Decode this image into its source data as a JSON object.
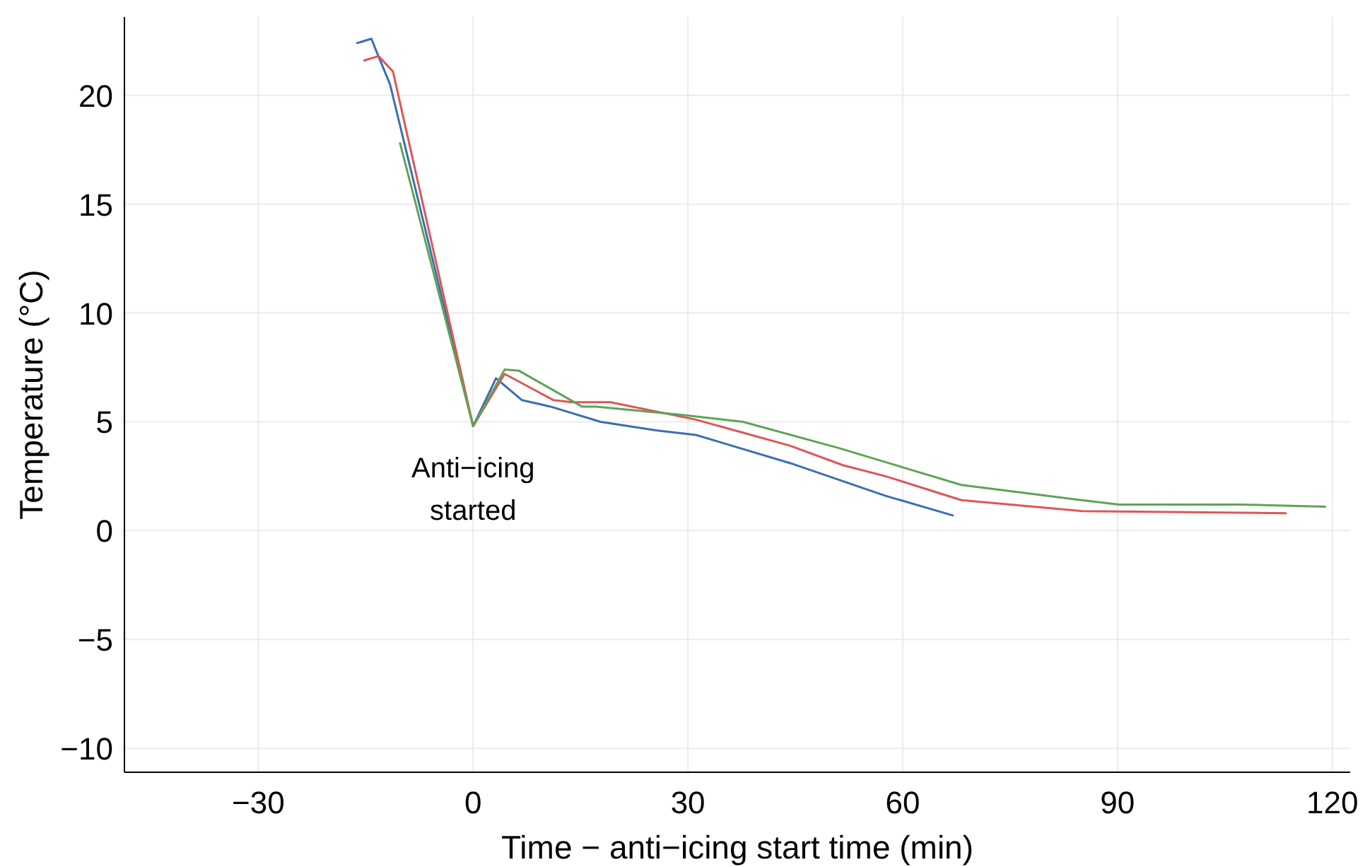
{
  "chart_data": {
    "type": "line",
    "xlabel": "Time − anti−icing start time (min)",
    "ylabel": "Temperature (°C)",
    "xlim": [
      -48.7,
      122.5
    ],
    "ylim": [
      -11.1,
      23.6
    ],
    "xticks": [
      {
        "value": -30,
        "label": "−30"
      },
      0,
      30,
      60,
      90,
      120
    ],
    "yticks": [
      {
        "value": -10,
        "label": "−10"
      },
      {
        "value": -5,
        "label": "−5"
      },
      0,
      5,
      10,
      15,
      20
    ],
    "grid": true,
    "line_style": "solid",
    "marker": "none",
    "annotations": [
      {
        "text": "Anti−icing\nstarted",
        "x": 0,
        "y": 4.8
      }
    ],
    "series": [
      {
        "color": "#3b6fb3",
        "x": [
          -16.2,
          -14.2,
          -13.6,
          -11.6,
          0,
          3.2,
          6.8,
          10.8,
          17.8,
          25.7,
          31.1,
          44.3,
          57.6,
          67
        ],
        "values": [
          22.4,
          22.6,
          22.1,
          20.5,
          4.8,
          7.0,
          6.0,
          5.7,
          5.0,
          4.6,
          4.4,
          3.1,
          1.6,
          0.7
        ]
      },
      {
        "color": "#e05555",
        "x": [
          -15.2,
          -13.2,
          -11.2,
          0,
          4.4,
          11.2,
          13.8,
          19.2,
          31.1,
          44.3,
          51.7,
          57.6,
          68.2,
          85,
          113.5
        ],
        "values": [
          21.6,
          21.8,
          21.1,
          4.8,
          7.2,
          6.0,
          5.9,
          5.9,
          5.1,
          3.9,
          3.0,
          2.5,
          1.4,
          0.9,
          0.8
        ]
      },
      {
        "color": "#5fa356",
        "x": [
          -10.2,
          0,
          4.4,
          6.4,
          15.2,
          17.2,
          29.7,
          37.7,
          51,
          68.2,
          85,
          90.2,
          107,
          119
        ],
        "values": [
          17.8,
          4.8,
          7.4,
          7.35,
          5.7,
          5.7,
          5.3,
          5.0,
          3.8,
          2.1,
          1.4,
          1.2,
          1.2,
          1.1
        ]
      }
    ]
  }
}
